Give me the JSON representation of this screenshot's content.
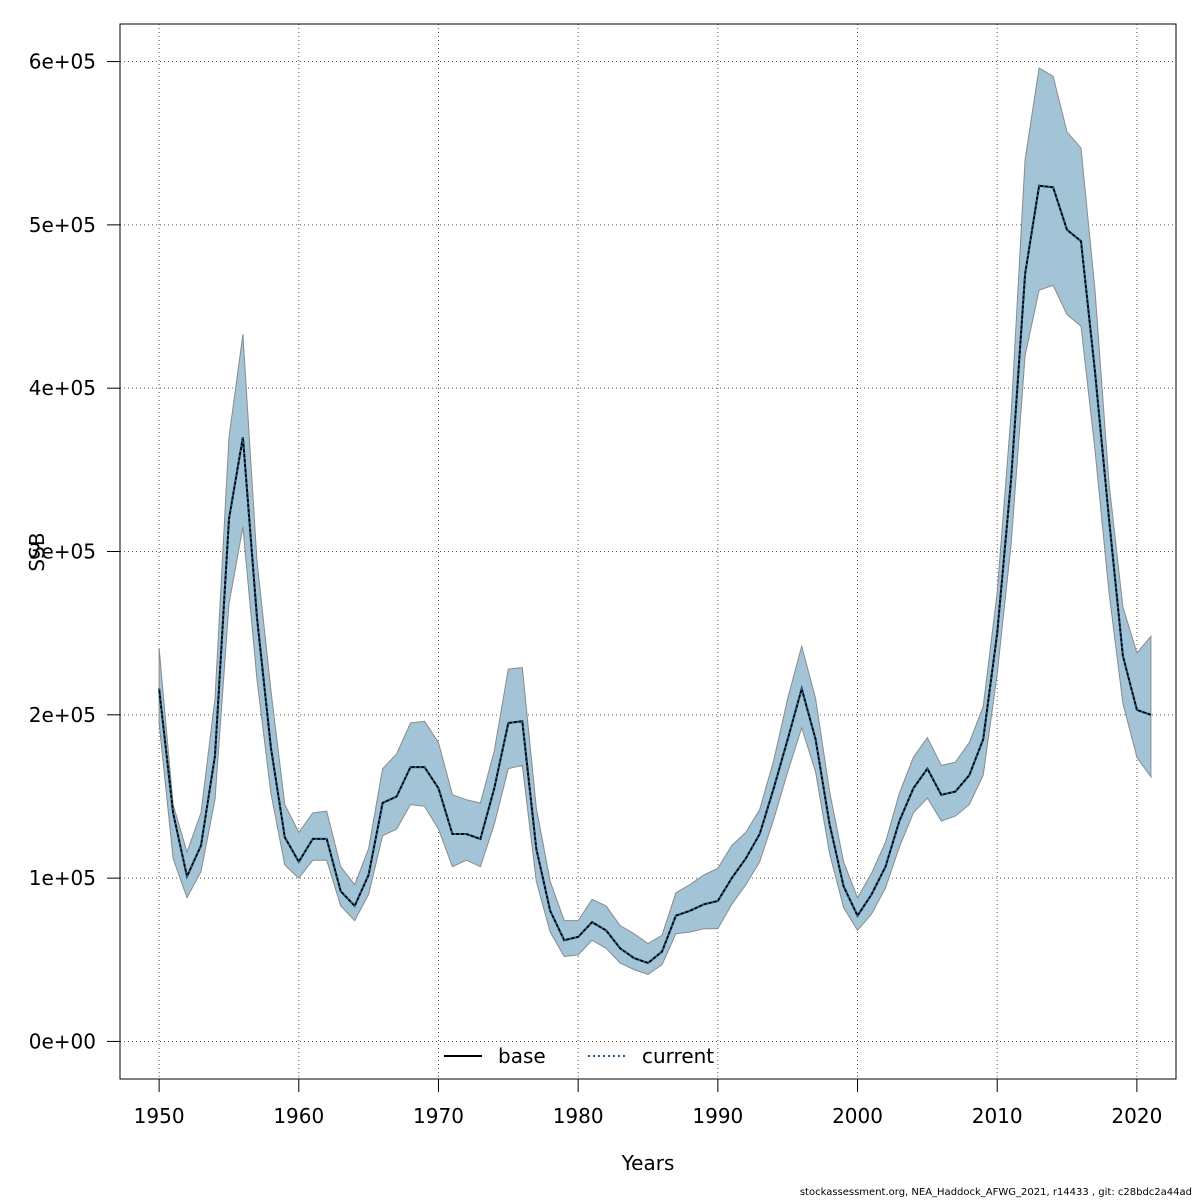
{
  "chart_data": {
    "type": "line",
    "xlabel": "Years",
    "ylabel": "SSB",
    "xlim": [
      1947.2,
      2022.8
    ],
    "ylim": [
      -23000,
      623000
    ],
    "x_ticks": [
      1950,
      1960,
      1970,
      1980,
      1990,
      2000,
      2010,
      2020
    ],
    "x_tick_labels": [
      "1950",
      "1960",
      "1970",
      "1980",
      "1990",
      "2000",
      "2010",
      "2020"
    ],
    "y_ticks": [
      0,
      100000,
      200000,
      300000,
      400000,
      500000,
      600000
    ],
    "y_tick_labels": [
      "0e+00",
      "1e+05",
      "2e+05",
      "3e+05",
      "4e+05",
      "5e+05",
      "6e+05"
    ],
    "grid": true,
    "legend_position": "bottom-center",
    "colors": {
      "band": "#a3c4d6",
      "band_edge": "#8a8a8a",
      "base": "#000000",
      "current": "#1f5f8b",
      "grid": "#555555"
    },
    "years": [
      1950,
      1951,
      1952,
      1953,
      1954,
      1955,
      1956,
      1957,
      1958,
      1959,
      1960,
      1961,
      1962,
      1963,
      1964,
      1965,
      1966,
      1967,
      1968,
      1969,
      1970,
      1971,
      1972,
      1973,
      1974,
      1975,
      1976,
      1977,
      1978,
      1979,
      1980,
      1981,
      1982,
      1983,
      1984,
      1985,
      1986,
      1987,
      1988,
      1989,
      1990,
      1991,
      1992,
      1993,
      1994,
      1995,
      1996,
      1997,
      1998,
      1999,
      2000,
      2001,
      2002,
      2003,
      2004,
      2005,
      2006,
      2007,
      2008,
      2009,
      2010,
      2011,
      2012,
      2013,
      2014,
      2015,
      2016,
      2017,
      2018,
      2019,
      2020,
      2021
    ],
    "series": [
      {
        "name": "base",
        "line": "solid",
        "values": [
          216000,
          140000,
          101000,
          120000,
          175000,
          320000,
          370000,
          260000,
          180000,
          125000,
          110000,
          124000,
          124000,
          92000,
          83000,
          102000,
          146000,
          150000,
          168000,
          168000,
          155000,
          127000,
          127000,
          124000,
          155000,
          195000,
          196000,
          118000,
          80000,
          62000,
          64000,
          73000,
          68000,
          57000,
          51000,
          48000,
          55000,
          77000,
          80000,
          84000,
          86000,
          100000,
          112000,
          127000,
          155000,
          185000,
          216000,
          185000,
          133000,
          95000,
          77000,
          90000,
          107000,
          135000,
          155000,
          167000,
          151000,
          153000,
          163000,
          185000,
          250000,
          345000,
          470000,
          524000,
          523000,
          497000,
          490000,
          410000,
          320000,
          236000,
          203000,
          200000
        ]
      },
      {
        "name": "current",
        "line": "dotted",
        "values": [
          216000,
          140000,
          101000,
          120000,
          175000,
          320000,
          370000,
          260000,
          180000,
          125000,
          110000,
          124000,
          124000,
          92000,
          83000,
          102000,
          146000,
          150000,
          168000,
          168000,
          155000,
          127000,
          127000,
          124000,
          155000,
          195000,
          196000,
          118000,
          80000,
          62000,
          64000,
          73000,
          68000,
          57000,
          51000,
          48000,
          55000,
          77000,
          80000,
          84000,
          86000,
          100000,
          112000,
          127000,
          155000,
          185000,
          216000,
          185000,
          133000,
          95000,
          77000,
          90000,
          107000,
          135000,
          155000,
          167000,
          151000,
          153000,
          163000,
          185000,
          250000,
          345000,
          470000,
          524000,
          523000,
          497000,
          490000,
          410000,
          320000,
          236000,
          203000,
          200000
        ]
      }
    ],
    "band_upper": [
      241000,
      145000,
      116000,
      140000,
      210000,
      370000,
      433000,
      295000,
      215000,
      145000,
      128000,
      140000,
      141000,
      107000,
      96000,
      118000,
      167000,
      176000,
      195000,
      196000,
      183000,
      151000,
      148000,
      146000,
      178000,
      228000,
      229000,
      143000,
      98000,
      74000,
      74000,
      87000,
      83000,
      71000,
      66000,
      60000,
      65000,
      91000,
      96000,
      102000,
      106000,
      120000,
      128000,
      142000,
      172000,
      210000,
      242000,
      210000,
      153000,
      110000,
      88000,
      103000,
      122000,
      152000,
      174000,
      186000,
      169000,
      171000,
      183000,
      205000,
      275000,
      385000,
      540000,
      596000,
      591000,
      557000,
      547000,
      460000,
      342000,
      266000,
      238000,
      248000
    ],
    "band_lower": [
      195000,
      112000,
      88000,
      104000,
      148000,
      268000,
      315000,
      222000,
      152000,
      108000,
      100000,
      111000,
      111000,
      83000,
      74000,
      90000,
      126000,
      130000,
      145000,
      144000,
      130000,
      107000,
      111000,
      107000,
      133000,
      167000,
      169000,
      98000,
      67000,
      52000,
      53000,
      62000,
      57000,
      48000,
      44000,
      41000,
      47000,
      66000,
      67000,
      69000,
      69000,
      84000,
      96000,
      110000,
      136000,
      165000,
      192000,
      165000,
      115000,
      82000,
      68000,
      78000,
      94000,
      119000,
      140000,
      149000,
      135000,
      138000,
      145000,
      163000,
      225000,
      305000,
      420000,
      460000,
      463000,
      445000,
      438000,
      362000,
      275000,
      207000,
      174000,
      162000
    ],
    "legend": [
      "base",
      "current"
    ]
  },
  "footer_text": "stockassessment.org, NEA_Haddock_AFWG_2021, r14433 , git: c28bdc2a44ad"
}
